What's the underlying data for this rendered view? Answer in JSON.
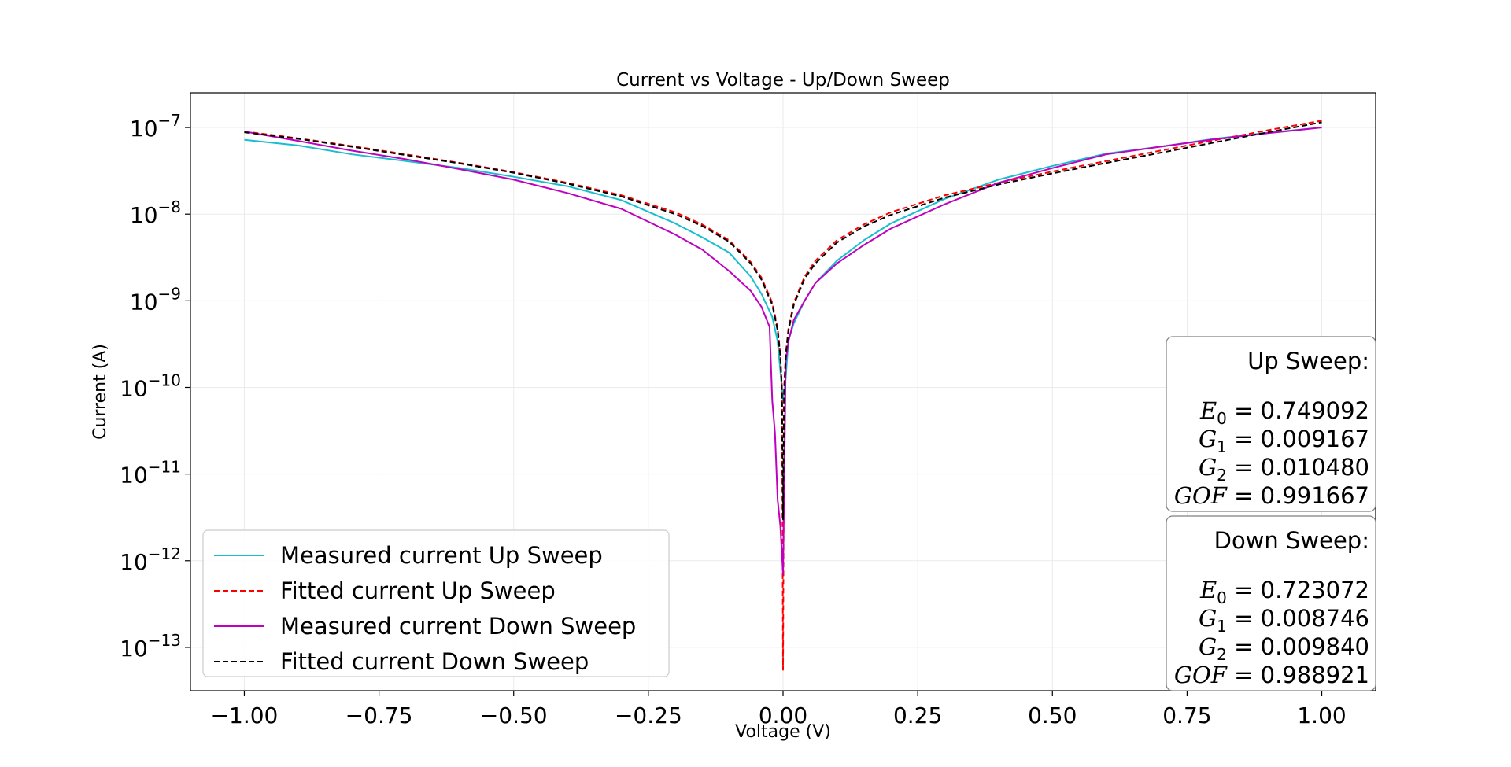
{
  "chart_data": {
    "type": "line",
    "title": "Current vs Voltage - Up/Down Sweep",
    "xlabel": "Voltage (V)",
    "ylabel": "Current (A)",
    "xlim": [
      -1.1,
      1.1
    ],
    "ylim_log10": [
      -13.5,
      -6.6
    ],
    "yscale": "log",
    "grid": true,
    "legend_placement": "lower-left",
    "x_ticks": [
      {
        "value": -1.0,
        "label": "−1.00"
      },
      {
        "value": -0.75,
        "label": "−0.75"
      },
      {
        "value": -0.5,
        "label": "−0.50"
      },
      {
        "value": -0.25,
        "label": "−0.25"
      },
      {
        "value": 0.0,
        "label": "0.00"
      },
      {
        "value": 0.25,
        "label": "0.25"
      },
      {
        "value": 0.5,
        "label": "0.50"
      },
      {
        "value": 0.75,
        "label": "0.75"
      },
      {
        "value": 1.0,
        "label": "1.00"
      }
    ],
    "y_ticks": [
      {
        "exp": -7,
        "base": "10",
        "sup": "−7"
      },
      {
        "exp": -8,
        "base": "10",
        "sup": "−8"
      },
      {
        "exp": -9,
        "base": "10",
        "sup": "−9"
      },
      {
        "exp": -10,
        "base": "10",
        "sup": "−10"
      },
      {
        "exp": -11,
        "base": "10",
        "sup": "−11"
      },
      {
        "exp": -12,
        "base": "10",
        "sup": "−12"
      },
      {
        "exp": -13,
        "base": "10",
        "sup": "−13"
      }
    ],
    "series": [
      {
        "name": "Measured current Up Sweep",
        "color": "#17becf",
        "dash": "solid",
        "x": [
          -1.0,
          -0.9,
          -0.8,
          -0.7,
          -0.6,
          -0.5,
          -0.4,
          -0.3,
          -0.2,
          -0.15,
          -0.1,
          -0.06,
          -0.04,
          -0.02,
          -0.01,
          0.0,
          0.005,
          0.01,
          0.02,
          0.04,
          0.06,
          0.1,
          0.15,
          0.2,
          0.3,
          0.4,
          0.5,
          0.6,
          0.7,
          0.8,
          0.9,
          1.0
        ],
        "y": [
          7.2e-08,
          6.2e-08,
          4.9e-08,
          4.1e-08,
          3.4e-08,
          2.7e-08,
          2.1e-08,
          1.45e-08,
          7.8e-09,
          5.4e-09,
          3.6e-09,
          1.9e-09,
          1.2e-09,
          6.5e-10,
          3.4e-10,
          7e-11,
          1.3e-10,
          3.5e-10,
          5.5e-10,
          1e-09,
          1.6e-09,
          2.9e-09,
          5e-09,
          7.8e-09,
          1.5e-08,
          2.5e-08,
          3.6e-08,
          5e-08,
          6e-08,
          7.4e-08,
          8.7e-08,
          1e-07
        ]
      },
      {
        "name": "Fitted current Up Sweep",
        "color": "#ff0000",
        "dash": "dashed",
        "x": [
          -1.0,
          -0.9,
          -0.8,
          -0.7,
          -0.6,
          -0.5,
          -0.4,
          -0.3,
          -0.2,
          -0.15,
          -0.1,
          -0.06,
          -0.04,
          -0.02,
          -0.01,
          -0.005,
          -0.002,
          0.0,
          0.002,
          0.005,
          0.01,
          0.02,
          0.04,
          0.06,
          0.1,
          0.15,
          0.2,
          0.3,
          0.4,
          0.5,
          0.6,
          0.7,
          0.8,
          0.9,
          1.0
        ],
        "y": [
          9e-08,
          7.5e-08,
          6.1e-08,
          4.9e-08,
          3.9e-08,
          3.05e-08,
          2.3e-08,
          1.65e-08,
          1.05e-08,
          7.6e-09,
          5e-09,
          2.8e-09,
          1.85e-09,
          9.5e-10,
          4.8e-10,
          2.4e-10,
          9.5e-11,
          5.5e-14,
          9.5e-11,
          2.4e-10,
          4.8e-10,
          9.5e-10,
          1.9e-09,
          2.9e-09,
          5e-09,
          7.6e-09,
          1.05e-08,
          1.65e-08,
          2.3e-08,
          3.1e-08,
          4.1e-08,
          5.4e-08,
          7.1e-08,
          9.3e-08,
          1.2e-07
        ]
      },
      {
        "name": "Measured current Down Sweep",
        "color": "#bf00bf",
        "dash": "solid",
        "x": [
          -1.0,
          -0.9,
          -0.8,
          -0.7,
          -0.6,
          -0.5,
          -0.4,
          -0.3,
          -0.2,
          -0.15,
          -0.1,
          -0.06,
          -0.04,
          -0.025,
          -0.02,
          -0.015,
          -0.01,
          -0.005,
          0.0,
          0.005,
          0.01,
          0.02,
          0.04,
          0.06,
          0.1,
          0.15,
          0.2,
          0.3,
          0.4,
          0.5,
          0.6,
          0.7,
          0.8,
          0.9,
          1.0
        ],
        "y": [
          9e-08,
          7e-08,
          5.4e-08,
          4.3e-08,
          3.3e-08,
          2.5e-08,
          1.75e-08,
          1.15e-08,
          5.8e-09,
          3.9e-09,
          2.2e-09,
          1.3e-09,
          8.5e-10,
          5e-10,
          7e-11,
          3e-11,
          5e-12,
          2.5e-12,
          7e-13,
          2e-10,
          3.4e-10,
          6e-10,
          1e-09,
          1.6e-09,
          2.7e-09,
          4.4e-09,
          6.8e-09,
          1.3e-08,
          2.3e-08,
          3.4e-08,
          4.9e-08,
          6e-08,
          7.3e-08,
          8.6e-08,
          1e-07
        ]
      },
      {
        "name": "Fitted current Down Sweep",
        "color": "#000000",
        "dash": "dashed",
        "x": [
          -1.0,
          -0.9,
          -0.8,
          -0.7,
          -0.6,
          -0.5,
          -0.4,
          -0.3,
          -0.2,
          -0.15,
          -0.1,
          -0.06,
          -0.04,
          -0.02,
          -0.01,
          -0.005,
          -0.002,
          0.0,
          0.002,
          0.005,
          0.01,
          0.02,
          0.04,
          0.06,
          0.1,
          0.15,
          0.2,
          0.3,
          0.4,
          0.5,
          0.6,
          0.7,
          0.8,
          0.9,
          1.0
        ],
        "y": [
          8.8e-08,
          7.4e-08,
          6e-08,
          4.8e-08,
          3.85e-08,
          3e-08,
          2.25e-08,
          1.6e-08,
          1e-08,
          7.3e-09,
          4.8e-09,
          2.7e-09,
          1.75e-09,
          9e-10,
          4.5e-10,
          2.3e-10,
          9e-11,
          3e-12,
          9e-11,
          2.3e-10,
          4.5e-10,
          9e-10,
          1.8e-09,
          2.7e-09,
          4.7e-09,
          7.2e-09,
          9.8e-09,
          1.55e-08,
          2.2e-08,
          2.95e-08,
          3.9e-08,
          5.1e-08,
          6.7e-08,
          8.8e-08,
          1.15e-07
        ]
      }
    ],
    "annotations": [
      {
        "title": "Up Sweep:",
        "rows": [
          {
            "sym": "E",
            "sub": "0",
            "value": "0.749092"
          },
          {
            "sym": "G",
            "sub": "1",
            "value": "0.009167"
          },
          {
            "sym": "G",
            "sub": "2",
            "value": "0.010480"
          },
          {
            "sym": "GOF",
            "sub": "",
            "value": "0.991667"
          }
        ]
      },
      {
        "title": "Down Sweep:",
        "rows": [
          {
            "sym": "E",
            "sub": "0",
            "value": "0.723072"
          },
          {
            "sym": "G",
            "sub": "1",
            "value": "0.008746"
          },
          {
            "sym": "G",
            "sub": "2",
            "value": "0.009840"
          },
          {
            "sym": "GOF",
            "sub": "",
            "value": "0.988921"
          }
        ]
      }
    ]
  }
}
